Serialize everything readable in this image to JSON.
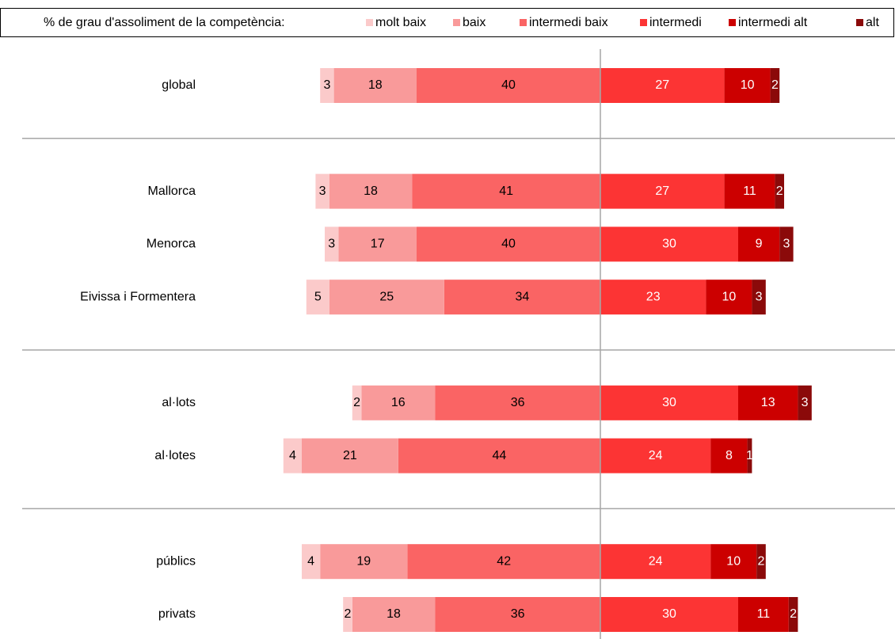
{
  "chart_data": {
    "type": "diverging_bar",
    "legend_title": "% de grau d'assoliment de la competència:",
    "categories": [
      "global",
      null,
      "Mallorca",
      "Menorca",
      "Eivissa i Formentera",
      null,
      "al·lots",
      "al·lotes",
      null,
      "públics",
      "privats"
    ],
    "series": [
      {
        "name": "molt baix",
        "color": "#fbcaca",
        "label_color": "#000000",
        "side": "left",
        "values": [
          3,
          null,
          3,
          3,
          5,
          null,
          2,
          4,
          null,
          4,
          2
        ]
      },
      {
        "name": "baix",
        "color": "#f99a9a",
        "label_color": "#000000",
        "side": "left",
        "values": [
          18,
          null,
          18,
          17,
          25,
          null,
          16,
          21,
          null,
          19,
          18
        ]
      },
      {
        "name": "intermedi baix",
        "color": "#fa6464",
        "label_color": "#000000",
        "side": "left",
        "values": [
          40,
          null,
          41,
          40,
          34,
          null,
          36,
          44,
          null,
          42,
          36
        ]
      },
      {
        "name": "intermedi",
        "color": "#fc3434",
        "label_color": "#ffffff",
        "side": "right",
        "values": [
          27,
          null,
          27,
          30,
          23,
          null,
          30,
          24,
          null,
          24,
          30
        ]
      },
      {
        "name": "intermedi alt",
        "color": "#cc0000",
        "label_color": "#ffffff",
        "side": "right",
        "values": [
          10,
          null,
          11,
          9,
          10,
          null,
          13,
          8,
          null,
          10,
          11
        ]
      },
      {
        "name": "alt",
        "color": "#8b0a0a",
        "label_color": "#ffffff",
        "side": "right",
        "values": [
          2,
          null,
          2,
          3,
          3,
          null,
          3,
          1,
          null,
          2,
          2
        ]
      }
    ]
  }
}
